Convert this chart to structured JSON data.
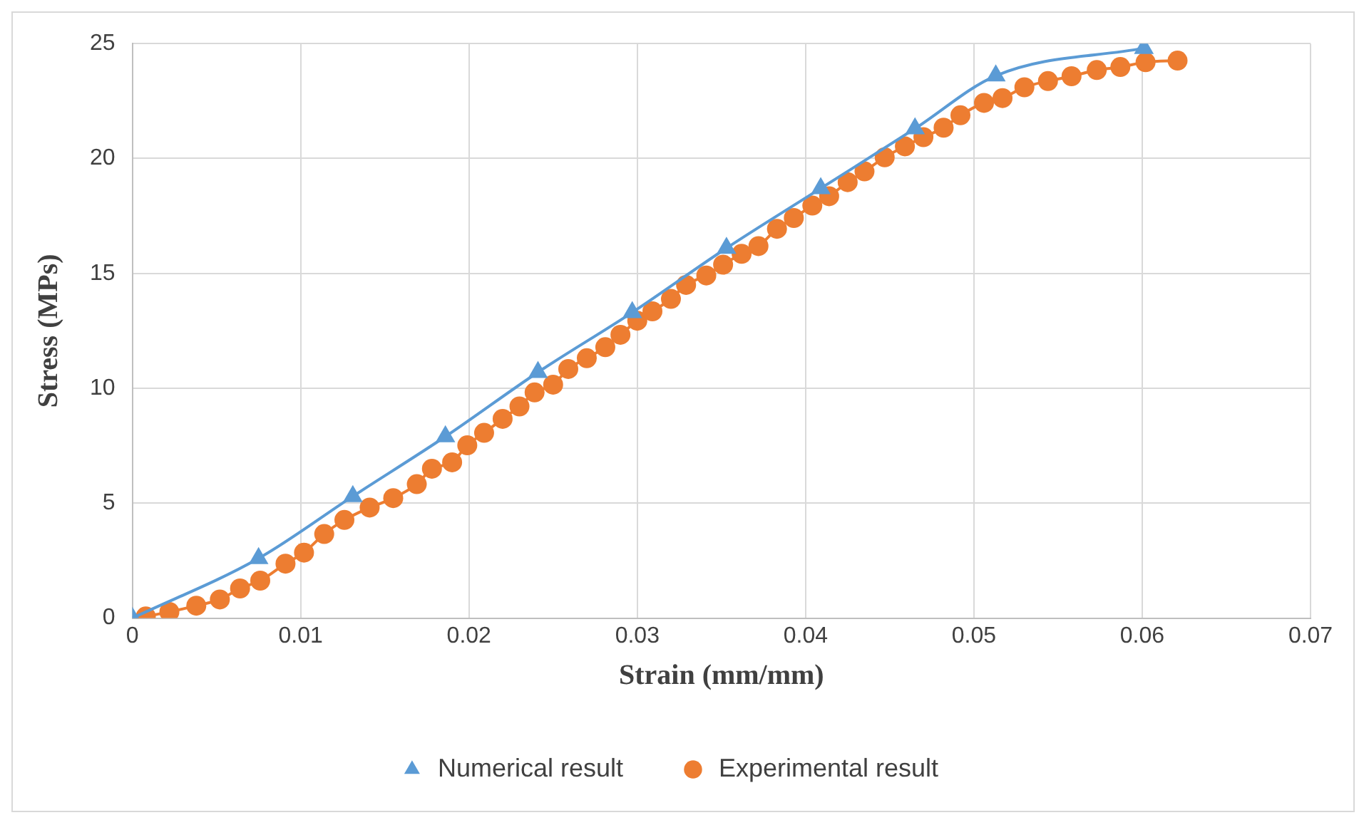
{
  "chart_data": {
    "type": "line",
    "xlabel": "Strain (mm/mm)",
    "ylabel": "Stress (MPs)",
    "xlim": [
      0,
      0.07
    ],
    "xticks": [
      0,
      0.01,
      0.02,
      0.03,
      0.04,
      0.05,
      0.06,
      0.07
    ],
    "ylim": [
      0,
      25
    ],
    "yticks": [
      0,
      5,
      10,
      15,
      20,
      25
    ],
    "grid": true,
    "legend": "bottom",
    "line_style": "solid",
    "series": [
      {
        "name": "Numerical result",
        "color": "#5b9bd5",
        "marker": "triangle",
        "x": [
          0,
          0.0075,
          0.0131,
          0.0186,
          0.0241,
          0.0297,
          0.0353,
          0.0409,
          0.0465,
          0.0513,
          0.0601
        ],
        "values": [
          0,
          2.6,
          5.3,
          7.9,
          10.7,
          13.3,
          16.1,
          18.7,
          21.3,
          23.6,
          24.8
        ]
      },
      {
        "name": "Experimental result",
        "color": "#ed7d31",
        "marker": "circle",
        "x": [
          0.0008,
          0.0022,
          0.0038,
          0.0052,
          0.0064,
          0.0076,
          0.0091,
          0.0102,
          0.0114,
          0.0126,
          0.0141,
          0.0155,
          0.0169,
          0.0178,
          0.019,
          0.0199,
          0.0209,
          0.022,
          0.023,
          0.0239,
          0.025,
          0.0259,
          0.027,
          0.0281,
          0.029,
          0.03,
          0.0309,
          0.032,
          0.0329,
          0.0341,
          0.0351,
          0.0362,
          0.0372,
          0.0383,
          0.0393,
          0.0404,
          0.0414,
          0.0425,
          0.0435,
          0.0447,
          0.0459,
          0.047,
          0.0482,
          0.0492,
          0.0506,
          0.0517,
          0.053,
          0.0544,
          0.0558,
          0.0573,
          0.0587,
          0.0602,
          0.0621
        ],
        "values": [
          0.07,
          0.27,
          0.54,
          0.81,
          1.29,
          1.63,
          2.37,
          2.85,
          3.66,
          4.27,
          4.81,
          5.22,
          5.83,
          6.5,
          6.78,
          7.52,
          8.06,
          8.67,
          9.21,
          9.82,
          10.16,
          10.84,
          11.31,
          11.79,
          12.33,
          12.94,
          13.35,
          13.89,
          14.5,
          14.91,
          15.38,
          15.85,
          16.19,
          16.94,
          17.41,
          17.95,
          18.36,
          18.97,
          19.44,
          20.05,
          20.53,
          20.93,
          21.34,
          21.88,
          22.42,
          22.63,
          23.1,
          23.37,
          23.58,
          23.85,
          23.98,
          24.19,
          24.26
        ]
      }
    ]
  }
}
